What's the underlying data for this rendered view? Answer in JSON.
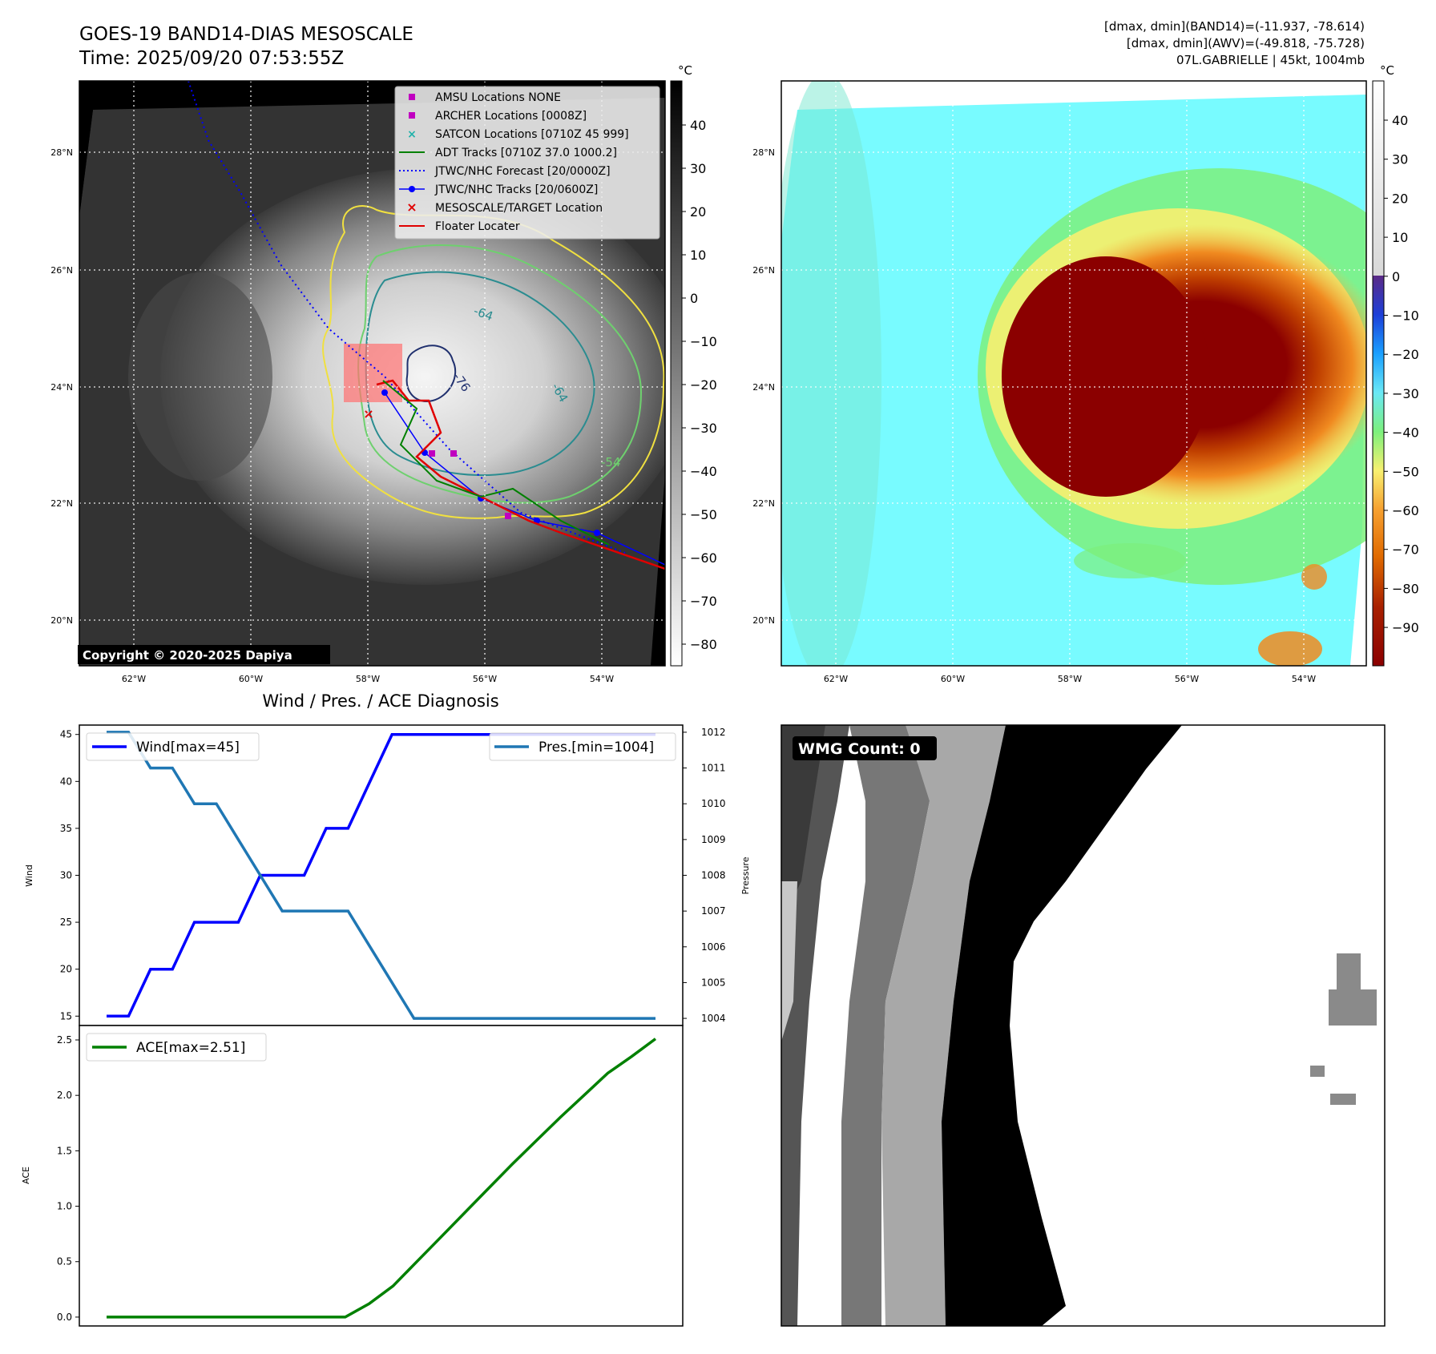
{
  "header": {
    "title": "GOES-19 BAND14-DIAS MESOSCALE",
    "time": "Time: 2025/09/20 07:53:55Z",
    "stat_band14": "[dmax, dmin](BAND14)=(-11.937, -78.614)",
    "stat_awv": "[dmax, dmin](AWV)=(-49.818, -75.728)",
    "storm": "07L.GABRIELLE | 45kt, 1004mb"
  },
  "map": {
    "lon_ticks": [
      "62°W",
      "60°W",
      "58°W",
      "56°W",
      "54°W"
    ],
    "lat_ticks": [
      "28°N",
      "26°N",
      "24°N",
      "22°N",
      "20°N"
    ],
    "contour_labels": [
      "-64",
      "-76",
      "-64",
      "-54"
    ],
    "copyright": "Copyright © 2020-2025 Dapiya",
    "legend": [
      {
        "label": "AMSU Locations NONE",
        "color": "#c000c0",
        "marker": "square"
      },
      {
        "label": "ARCHER Locations [0008Z]",
        "color": "#c000c0",
        "marker": "square"
      },
      {
        "label": "SATCON Locations [0710Z 45 999]",
        "color": "#20b2aa",
        "marker": "x"
      },
      {
        "label": "ADT Tracks [0710Z 37.0 1000.2]",
        "color": "#008000",
        "marker": "line"
      },
      {
        "label": "JTWC/NHC Forecast [20/0000Z]",
        "color": "#0000ff",
        "marker": "dotted"
      },
      {
        "label": "JTWC/NHC Tracks [20/0600Z]",
        "color": "#0000ff",
        "marker": "line-dot"
      },
      {
        "label": "MESOSCALE/TARGET Location",
        "color": "#e00000",
        "marker": "x"
      },
      {
        "label": "Floater Locater",
        "color": "#e00000",
        "marker": "line"
      }
    ]
  },
  "colorbar_left": {
    "unit": "°C",
    "ticks": [
      "40",
      "30",
      "20",
      "10",
      "0",
      "−10",
      "−20",
      "−30",
      "−40",
      "−50",
      "−60",
      "−70",
      "−80"
    ]
  },
  "colorbar_right": {
    "unit": "°C",
    "ticks": [
      "40",
      "30",
      "20",
      "10",
      "0",
      "−10",
      "−20",
      "−30",
      "−40",
      "−50",
      "−60",
      "−70",
      "−80",
      "−90"
    ]
  },
  "diagnosis": {
    "title": "Wind / Pres. / ACE Diagnosis",
    "wind_legend": "Wind[max=45]",
    "pres_legend": "Pres.[min=1004]",
    "ace_legend": "ACE[max=2.51]",
    "wind_axis_label": "Wind",
    "pres_axis_label": "Pressure",
    "ace_axis_label": "ACE"
  },
  "wmg": {
    "label": "WMG Count: 0"
  },
  "colors": {
    "wind": "#0000ff",
    "pressure": "#1f77b4",
    "ace": "#008000"
  },
  "chart_data": [
    {
      "type": "line",
      "title": "Wind / Pres. / ACE Diagnosis",
      "ylabel": "Wind",
      "ylim": [
        14,
        46
      ],
      "y_ticks": [
        15,
        20,
        25,
        30,
        35,
        40,
        45
      ],
      "series": [
        {
          "name": "Wind[max=45]",
          "axis": "left",
          "values": [
            15,
            15,
            20,
            20,
            25,
            25,
            25,
            30,
            30,
            30,
            35,
            35,
            40,
            45,
            45,
            45,
            45,
            45,
            45,
            45,
            45,
            45,
            45,
            45,
            45,
            45
          ]
        },
        {
          "name": "Pres.[min=1004]",
          "axis": "right",
          "ylabel": "Pressure",
          "ylim": [
            1003.8,
            1012.2
          ],
          "y_ticks": [
            1004,
            1005,
            1006,
            1007,
            1008,
            1009,
            1010,
            1011,
            1012
          ],
          "values": [
            1012,
            1012,
            1011,
            1011,
            1010,
            1010,
            1009,
            1008,
            1007,
            1007,
            1007,
            1007,
            1006,
            1005,
            1004,
            1004,
            1004,
            1004,
            1004,
            1004,
            1004,
            1004,
            1004,
            1004,
            1004,
            1004
          ]
        }
      ]
    },
    {
      "type": "line",
      "ylabel": "ACE",
      "ylim": [
        -0.08,
        2.63
      ],
      "y_ticks": [
        0.0,
        0.5,
        1.0,
        1.5,
        2.0,
        2.5
      ],
      "series": [
        {
          "name": "ACE[max=2.51]",
          "values": [
            0,
            0,
            0,
            0,
            0,
            0,
            0,
            0,
            0,
            0,
            0,
            0.12,
            0.28,
            0.5,
            0.72,
            0.94,
            1.16,
            1.38,
            1.59,
            1.8,
            2.0,
            2.2,
            2.35,
            2.51
          ]
        }
      ]
    }
  ]
}
